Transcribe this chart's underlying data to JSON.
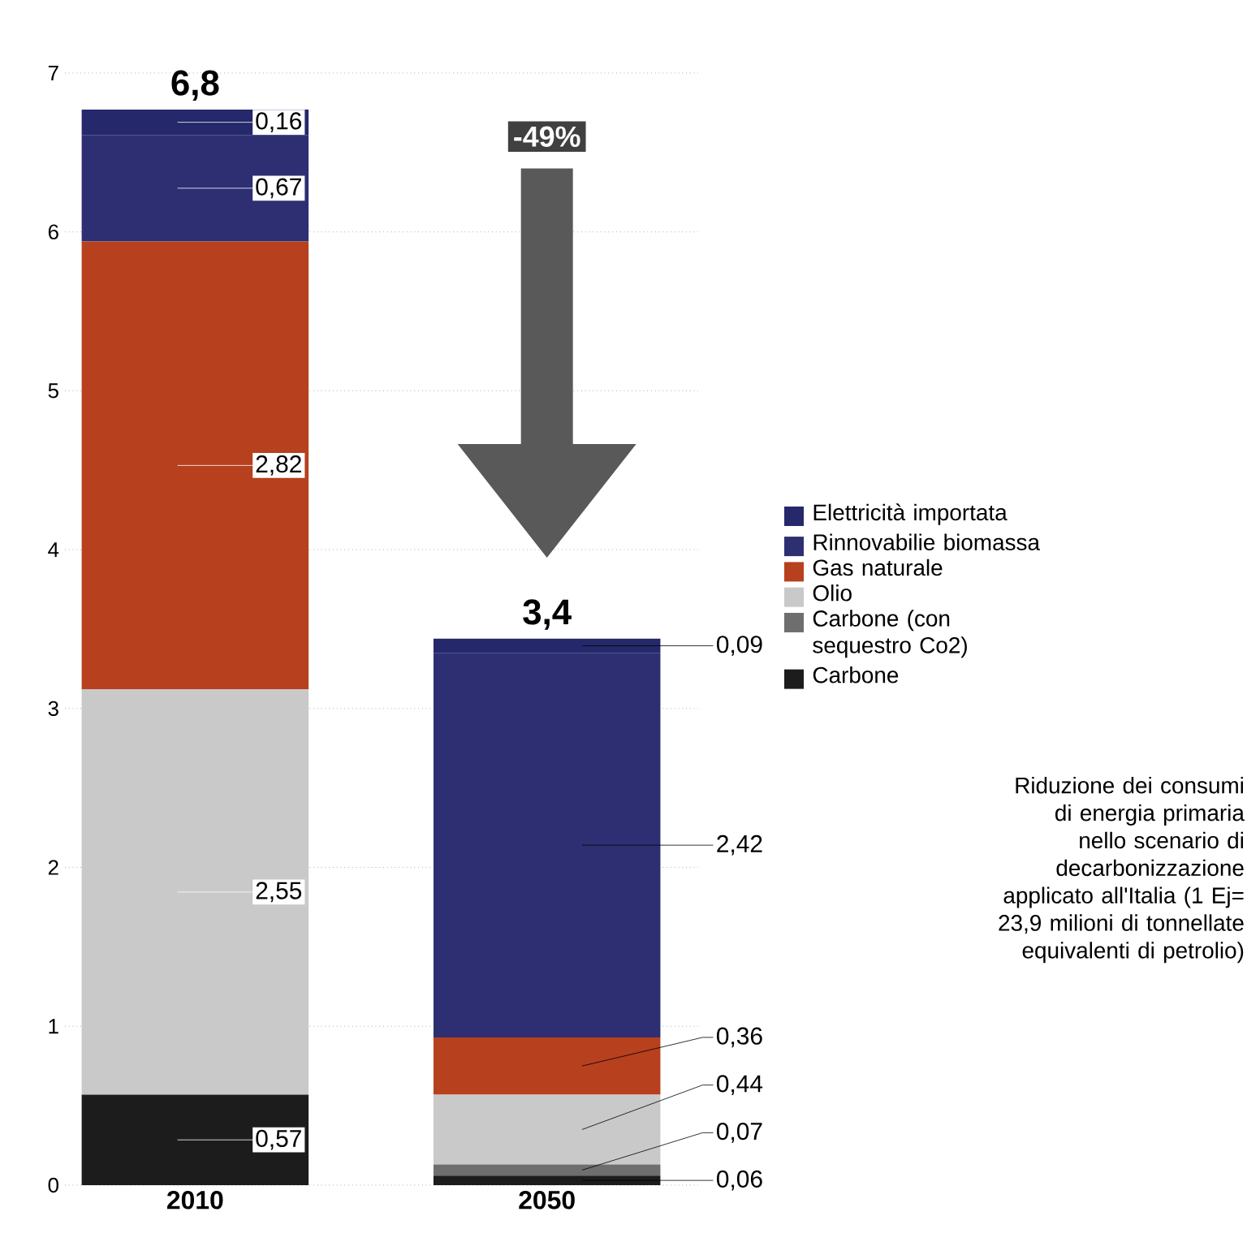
{
  "chart_data": {
    "type": "bar",
    "stacked": true,
    "categories": [
      "2010",
      "2050"
    ],
    "series": [
      {
        "name": "Carbone",
        "color": "#1c1c1c",
        "values": [
          0.57,
          0.06
        ],
        "value_labels": [
          "0,57",
          "0,06"
        ]
      },
      {
        "name": "Carbone (con sequestro Co2)",
        "color": "#6e6e6e",
        "values": [
          0,
          0.07
        ],
        "value_labels": [
          null,
          "0,07"
        ]
      },
      {
        "name": "Olio",
        "color": "#c9c9c9",
        "values": [
          2.55,
          0.44
        ],
        "value_labels": [
          "2,55",
          "0,44"
        ]
      },
      {
        "name": "Gas naturale",
        "color": "#b7401e",
        "values": [
          2.82,
          0.36
        ],
        "value_labels": [
          "2,82",
          "0,36"
        ]
      },
      {
        "name": "Rinnovabilie biomassa",
        "color": "#2d2f72",
        "values": [
          0.67,
          2.42
        ],
        "value_labels": [
          "0,67",
          "2,42"
        ]
      },
      {
        "name": "Elettricità importata",
        "color": "#25286a",
        "values": [
          0.16,
          0.09
        ],
        "value_labels": [
          "0,16",
          "0,09"
        ]
      }
    ],
    "totals": [
      "6,8",
      "3,4"
    ],
    "ylim": [
      0,
      7
    ],
    "yticks": [
      0,
      1,
      2,
      3,
      4,
      5,
      6,
      7
    ],
    "grid": "y",
    "legend": "right",
    "annotations": [
      "-49%",
      "Riduzione dei consumi di energia primaria nello scenario di decarbonizzazione applicato all'Italia (1 Ej= 23,9 milioni di tonnellate equivalenti di petrolio)"
    ]
  }
}
